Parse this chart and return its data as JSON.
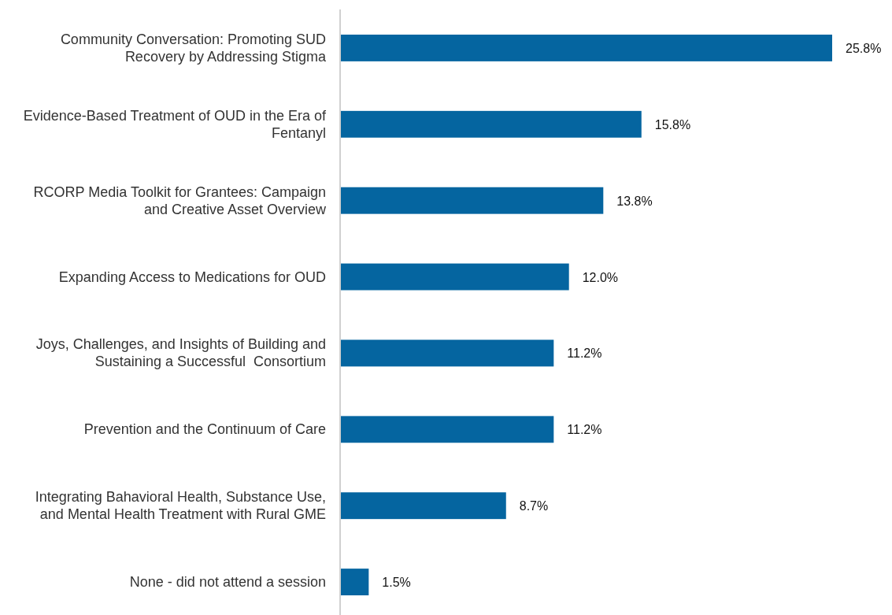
{
  "chart_data": {
    "type": "bar",
    "orientation": "horizontal",
    "data_labels": true,
    "categories": [
      "Community Conversation: Promoting SUD Recovery by Addressing Stigma",
      "Evidence-Based Treatment of OUD in the Era of Fentanyl",
      "RCORP Media Toolkit for Grantees: Campaign and Creative Asset Overview",
      "Expanding Access to Medications for OUD",
      "Joys, Challenges, and Insights of Building and Sustaining a Successful  Consortium",
      "Prevention and the Continuum of Care",
      "Integrating Bahavioral Health, Substance Use, and Mental Health Treatment with Rural GME",
      "None - did not attend a session"
    ],
    "values": [
      25.8,
      15.8,
      13.8,
      12.0,
      11.2,
      11.2,
      8.7,
      1.5
    ],
    "value_labels": [
      "25.8%",
      "15.8%",
      "13.8%",
      "12.0%",
      "11.2%",
      "11.2%",
      "8.7%",
      "1.5%"
    ],
    "color": "#0565a0"
  }
}
